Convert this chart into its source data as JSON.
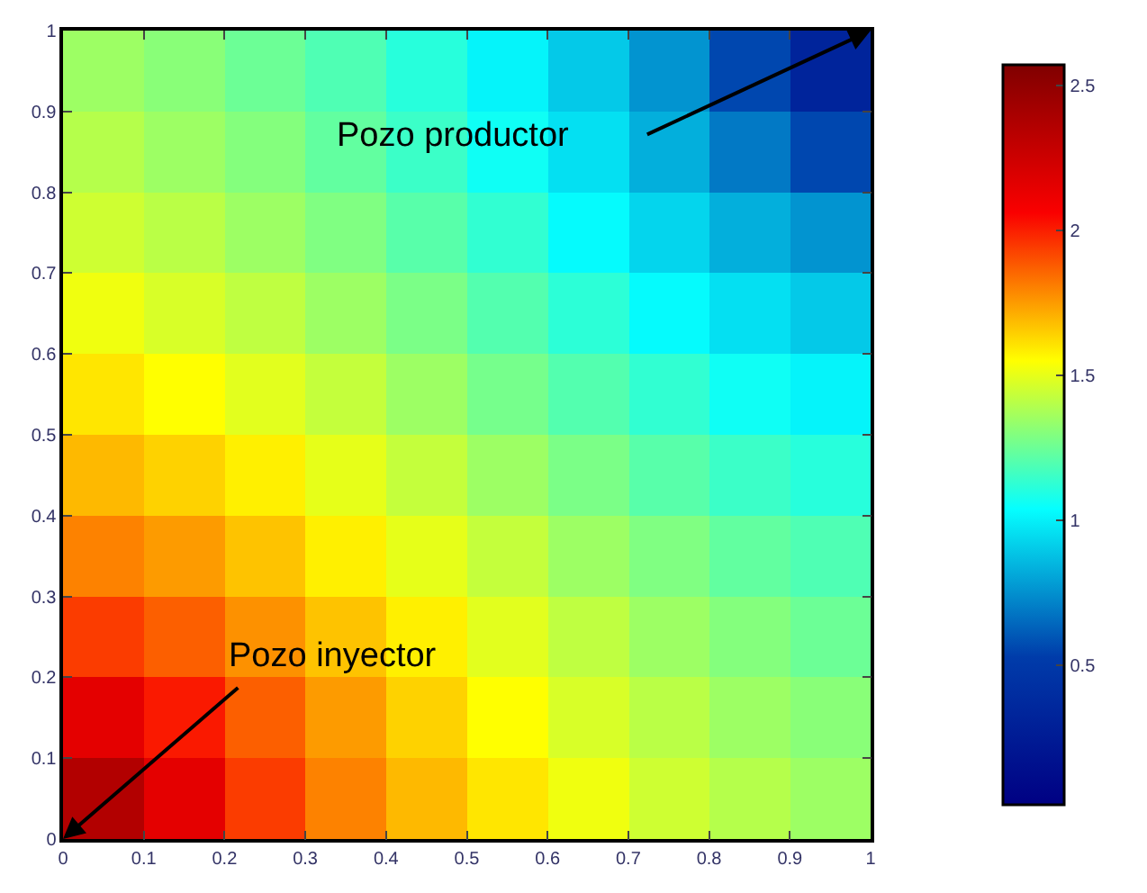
{
  "chart_data": {
    "type": "heatmap",
    "x": [
      0.05,
      0.15,
      0.25,
      0.35,
      0.45,
      0.55,
      0.65,
      0.75,
      0.85,
      0.95
    ],
    "y": [
      0.95,
      0.85,
      0.75,
      0.65,
      0.55,
      0.45,
      0.35,
      0.25,
      0.15,
      0.05
    ],
    "cells": [
      [
        1.35,
        1.31,
        1.25,
        1.19,
        1.11,
        1.01,
        0.9,
        0.76,
        0.56,
        0.33
      ],
      [
        1.4,
        1.35,
        1.3,
        1.23,
        1.15,
        1.06,
        0.96,
        0.83,
        0.69,
        0.56
      ],
      [
        1.45,
        1.41,
        1.35,
        1.29,
        1.21,
        1.13,
        1.03,
        0.93,
        0.83,
        0.76
      ],
      [
        1.52,
        1.47,
        1.42,
        1.35,
        1.28,
        1.2,
        1.12,
        1.03,
        0.96,
        0.9
      ],
      [
        1.6,
        1.55,
        1.49,
        1.43,
        1.35,
        1.27,
        1.2,
        1.13,
        1.06,
        1.01
      ],
      [
        1.69,
        1.64,
        1.58,
        1.5,
        1.43,
        1.35,
        1.28,
        1.21,
        1.15,
        1.11
      ],
      [
        1.8,
        1.75,
        1.67,
        1.58,
        1.5,
        1.43,
        1.35,
        1.29,
        1.23,
        1.19
      ],
      [
        1.94,
        1.87,
        1.77,
        1.67,
        1.58,
        1.49,
        1.42,
        1.35,
        1.3,
        1.25
      ],
      [
        2.15,
        2.01,
        1.87,
        1.75,
        1.64,
        1.55,
        1.47,
        1.41,
        1.35,
        1.31
      ],
      [
        2.36,
        2.15,
        1.94,
        1.8,
        1.69,
        1.6,
        1.52,
        1.45,
        1.4,
        1.35
      ]
    ],
    "xlim": [
      0,
      1
    ],
    "ylim": [
      0,
      1
    ],
    "xticks": [
      0,
      0.1,
      0.2,
      0.3,
      0.4,
      0.5,
      0.6,
      0.7,
      0.8,
      0.9,
      1
    ],
    "yticks": [
      0,
      0.1,
      0.2,
      0.3,
      0.4,
      0.5,
      0.6,
      0.7,
      0.8,
      0.9,
      1
    ],
    "clim": [
      0.02,
      2.57
    ],
    "cticks": [
      0.5,
      1,
      1.5,
      2,
      2.5
    ],
    "annotations": [
      "Pozo productor",
      "Pozo inyector"
    ]
  }
}
